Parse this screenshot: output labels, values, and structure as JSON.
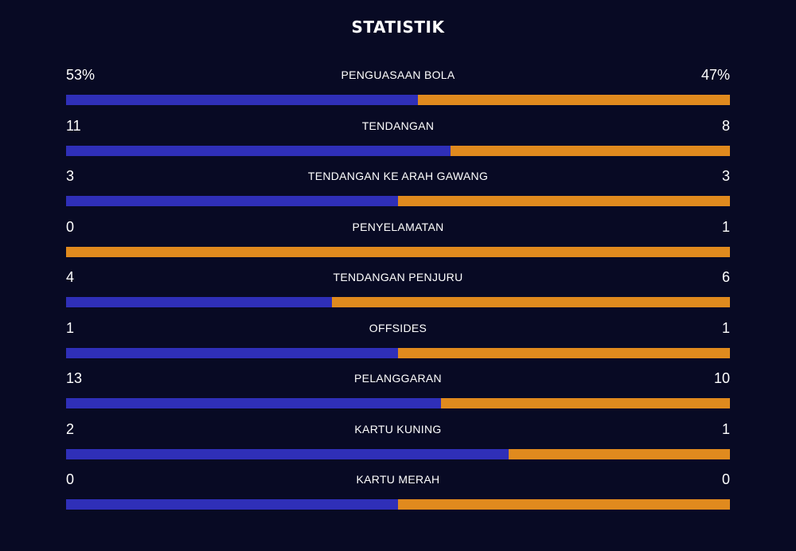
{
  "title": "STATISTIK",
  "colors": {
    "background": "#080a24",
    "home": "#2f2fb8",
    "away": "#e08a1e"
  },
  "stats": [
    {
      "label": "PENGUASAAN BOLA",
      "home": "53%",
      "away": "47%",
      "home_share": 0.53
    },
    {
      "label": "TENDANGAN",
      "home": "11",
      "away": "8",
      "home_share": 0.579
    },
    {
      "label": "TENDANGAN KE ARAH GAWANG",
      "home": "3",
      "away": "3",
      "home_share": 0.5
    },
    {
      "label": "PENYELAMATAN",
      "home": "0",
      "away": "1",
      "home_share": 0.0
    },
    {
      "label": "TENDANGAN PENJURU",
      "home": "4",
      "away": "6",
      "home_share": 0.4
    },
    {
      "label": "OFFSIDES",
      "home": "1",
      "away": "1",
      "home_share": 0.5
    },
    {
      "label": "PELANGGARAN",
      "home": "13",
      "away": "10",
      "home_share": 0.565
    },
    {
      "label": "KARTU KUNING",
      "home": "2",
      "away": "1",
      "home_share": 0.667
    },
    {
      "label": "KARTU MERAH",
      "home": "0",
      "away": "0",
      "home_share": 0.5
    }
  ]
}
